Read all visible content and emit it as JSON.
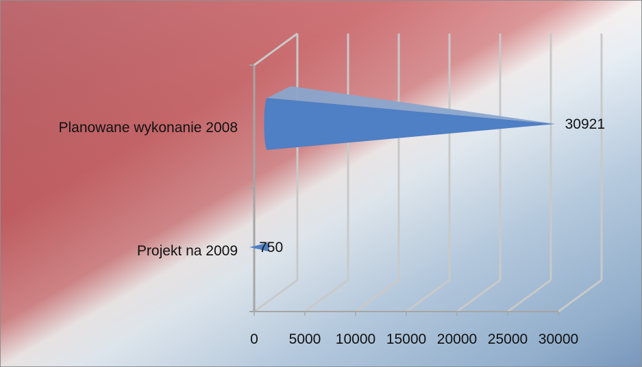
{
  "chart_data": {
    "type": "bar",
    "orientation": "horizontal",
    "style": "3d-cone",
    "categories": [
      "Planowane wykonanie 2008",
      "Projekt na 2009"
    ],
    "values": [
      30921,
      750
    ],
    "data_labels": [
      "30921",
      "750"
    ],
    "xlim": [
      0,
      30000
    ],
    "xticks": [
      0,
      5000,
      10000,
      15000,
      20000,
      25000,
      30000
    ],
    "xtick_labels": [
      "0",
      "5000",
      "10000",
      "15000",
      "20000",
      "25000",
      "30000"
    ],
    "title": "",
    "xlabel": "",
    "ylabel": "",
    "grid": true,
    "legend": "none",
    "colors": {
      "bar_front": "#4f7fc4",
      "bar_top": "#8aa5cc",
      "background_red": "#c85a5e",
      "background_blue": "#8fb1d4",
      "gridline": "#c9c9c9",
      "frame": "#a5a5a5"
    }
  }
}
